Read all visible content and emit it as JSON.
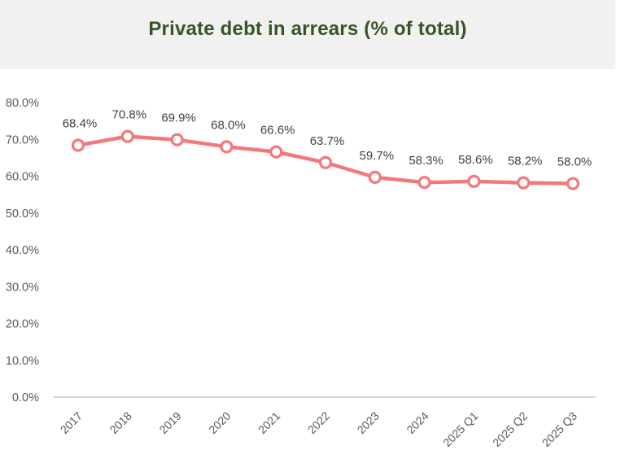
{
  "chart_data": {
    "type": "line",
    "title": "Private debt in arrears (% of total)",
    "categories": [
      "2017",
      "2018",
      "2019",
      "2020",
      "2021",
      "2022",
      "2023",
      "2024",
      "2025 Q1",
      "2025 Q2",
      "2025 Q3"
    ],
    "values": [
      68.4,
      70.8,
      69.9,
      68.0,
      66.6,
      63.7,
      59.7,
      58.3,
      58.6,
      58.2,
      58.0
    ],
    "data_labels": [
      "68.4%",
      "70.8%",
      "69.9%",
      "68.0%",
      "66.6%",
      "63.7%",
      "59.7%",
      "58.3%",
      "58.6%",
      "58.2%",
      "58.0%"
    ],
    "xlabel": "",
    "ylabel": "",
    "ylim": [
      0,
      80
    ],
    "ytick_step": 10,
    "ytick_labels": [
      "0.0%",
      "10.0%",
      "20.0%",
      "30.0%",
      "40.0%",
      "50.0%",
      "60.0%",
      "70.0%",
      "80.0%"
    ],
    "grid": false,
    "legend": "none",
    "marker": "open-circle",
    "x_label_rotation_deg": -45
  },
  "colors": {
    "header_bg": "#F1F1F1",
    "title": "#375623",
    "line": "#F5777B",
    "marker_fill": "#FFFFFF",
    "axis_line": "#D9D9D9",
    "tick_label": "#595959",
    "data_label": "#404040"
  }
}
